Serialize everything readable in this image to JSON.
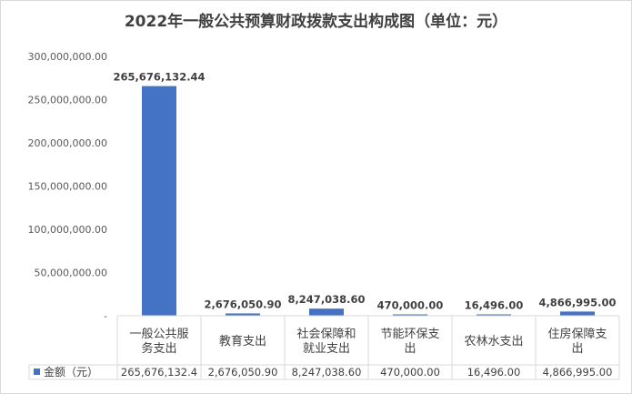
{
  "chart_data": {
    "type": "bar",
    "title": "2022年一般公共预算财政拨款支出构成图（单位：元）",
    "categories": [
      [
        "一般公共服",
        "务支出"
      ],
      [
        "教育支出"
      ],
      [
        "社会保障和",
        "就业支出"
      ],
      [
        "节能环保支",
        "出"
      ],
      [
        "农林水支出"
      ],
      [
        "住房保障支",
        "出"
      ]
    ],
    "series": [
      {
        "name": "金额（元）",
        "values": [
          265676132.44,
          2676050.9,
          8247038.6,
          470000.0,
          16496.0,
          4866995.0
        ],
        "data_labels": [
          "265,676,132.44",
          "2,676,050.90",
          "8,247,038.60",
          "470,000.00",
          "16,496.00",
          "4,866,995.00"
        ],
        "table_values": [
          "265,676,132.4",
          "2,676,050.90",
          "8,247,038.60",
          "470,000.00",
          "16,496.00",
          "4,866,995.00"
        ]
      }
    ],
    "ylim": [
      0,
      300000000
    ],
    "yticks": [
      0,
      50000000,
      100000000,
      150000000,
      200000000,
      250000000,
      300000000
    ],
    "ytick_labels": [
      "-",
      "50,000,000.00",
      "100,000,000.00",
      "150,000,000.00",
      "200,000,000.00",
      "250,000,000.00",
      "300,000,000.00"
    ],
    "grid": false,
    "legend": "data-table",
    "bar_color": "#4472c4",
    "axis_color": "#d9d9d9"
  }
}
